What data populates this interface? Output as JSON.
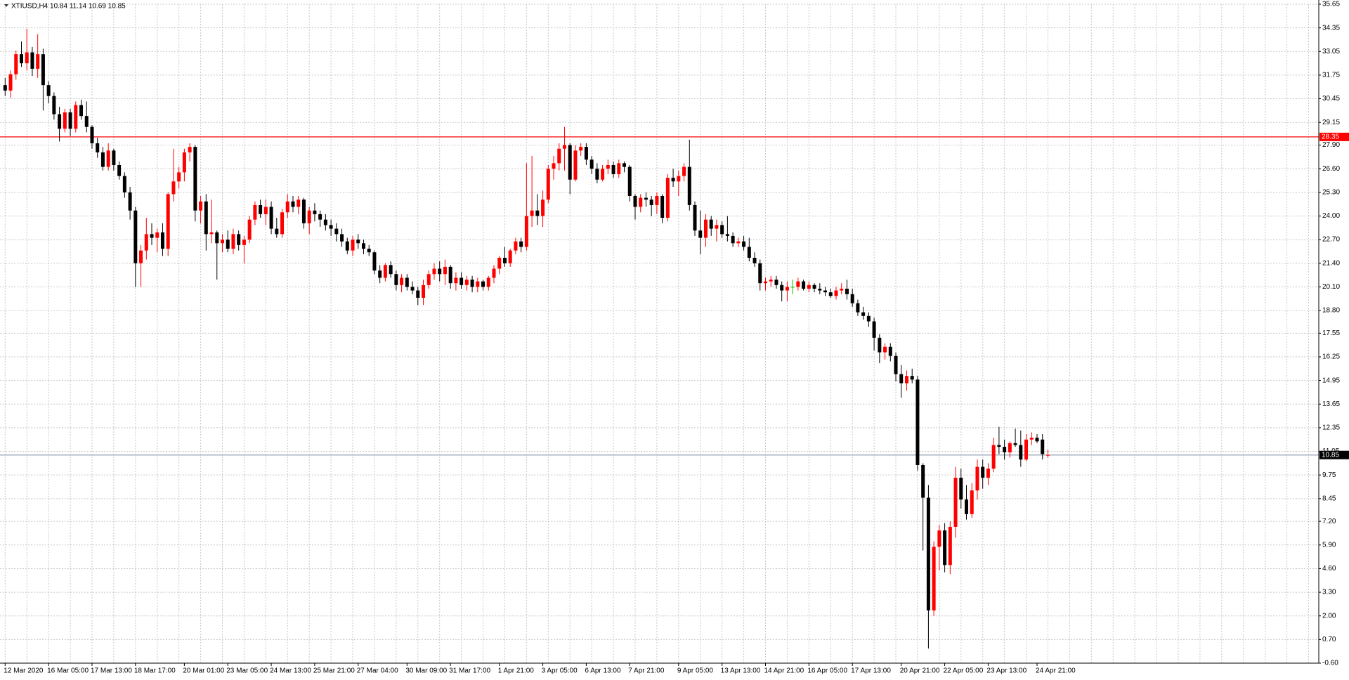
{
  "chart_data": {
    "type": "candlestick",
    "title": "XTIUSD,H4  10.84 11.14 10.69 10.85",
    "bull_color": "#ff0000",
    "bear_color": "#000000",
    "doji_color": "#00c000",
    "grid": true,
    "ylim": [
      -0.6,
      35.65
    ],
    "yticks": [
      35.65,
      34.35,
      33.05,
      31.75,
      30.45,
      29.15,
      {
        "value": 27.9,
        "label": "27.90"
      },
      {
        "value": 26.6,
        "label": "26.60"
      },
      {
        "value": 25.3,
        "label": "25.30"
      },
      {
        "value": 24,
        "label": "24.00"
      },
      {
        "value": 22.7,
        "label": "22.70"
      },
      {
        "value": 21.4,
        "label": "21.40"
      },
      {
        "value": 20.1,
        "label": "20.10"
      },
      {
        "value": 18.8,
        "label": "18.80"
      },
      17.55,
      16.25,
      14.95,
      13.65,
      12.35,
      11.05,
      9.75,
      8.45,
      {
        "value": 7.2,
        "label": "7.20"
      },
      {
        "value": 5.9,
        "label": "5.90"
      },
      {
        "value": 4.6,
        "label": "4.60"
      },
      {
        "value": 3.3,
        "label": "3.30"
      },
      {
        "value": 2,
        "label": "2.00"
      },
      {
        "value": 0.7,
        "label": "0.70"
      },
      {
        "value": -0.6,
        "label": "-0.60"
      }
    ],
    "hlines": [
      {
        "value": 28.35,
        "color": "#ff0000"
      },
      {
        "value": 10.85,
        "color": "#8c9cac"
      }
    ],
    "categories": [
      "12 Mar 2020",
      null,
      null,
      null,
      null,
      null,
      null,
      null,
      "16 Mar 05:00",
      null,
      null,
      null,
      null,
      null,
      null,
      null,
      "17 Mar 13:00",
      null,
      null,
      null,
      null,
      null,
      null,
      null,
      "18 Mar 17:00",
      null,
      null,
      null,
      null,
      null,
      null,
      null,
      null,
      "20 Mar 01:00",
      null,
      null,
      null,
      null,
      null,
      null,
      null,
      "23 Mar 05:00",
      null,
      null,
      null,
      null,
      null,
      null,
      null,
      "24 Mar 13:00",
      null,
      null,
      null,
      null,
      null,
      null,
      null,
      "25 Mar 21:00",
      null,
      null,
      null,
      null,
      null,
      null,
      null,
      "27 Mar 04:00",
      null,
      null,
      null,
      null,
      null,
      null,
      null,
      null,
      "30 Mar 09:00",
      null,
      null,
      null,
      null,
      null,
      null,
      null,
      "31 Mar 17:00",
      null,
      null,
      null,
      null,
      null,
      null,
      null,
      null,
      "1 Apr 21:00",
      null,
      null,
      null,
      null,
      null,
      null,
      null,
      "3 Apr 05:00",
      null,
      null,
      null,
      null,
      null,
      null,
      null,
      "6 Apr 13:00",
      null,
      null,
      null,
      null,
      null,
      null,
      null,
      "7 Apr 21:00",
      null,
      null,
      null,
      null,
      null,
      null,
      null,
      null,
      "9 Apr 05:00",
      null,
      null,
      null,
      null,
      null,
      null,
      null,
      "13 Apr 13:00",
      null,
      null,
      null,
      null,
      null,
      null,
      null,
      "14 Apr 21:00",
      null,
      null,
      null,
      null,
      null,
      null,
      null,
      "16 Apr 05:00",
      null,
      null,
      null,
      null,
      null,
      null,
      null,
      "17 Apr 13:00",
      null,
      null,
      null,
      null,
      null,
      null,
      null,
      null,
      "20 Apr 21:00",
      null,
      null,
      null,
      null,
      null,
      null,
      null,
      "22 Apr 05:00",
      null,
      null,
      null,
      null,
      null,
      null,
      null,
      "23 Apr 13:00",
      null,
      null,
      null,
      null,
      null,
      null,
      null,
      null,
      "24 Apr 21:00",
      null,
      null
    ],
    "ohlc": [
      [
        31.2,
        31.6,
        30.6,
        30.9
      ],
      [
        30.9,
        32.0,
        30.5,
        31.8
      ],
      [
        31.8,
        33.1,
        31.5,
        32.9
      ],
      [
        32.9,
        33.6,
        32.2,
        32.4
      ],
      [
        32.4,
        34.3,
        32.0,
        33.0
      ],
      [
        33.0,
        33.3,
        31.7,
        32.1
      ],
      [
        32.1,
        34.0,
        31.6,
        32.9
      ],
      [
        32.9,
        33.2,
        29.8,
        31.2
      ],
      [
        31.2,
        31.4,
        30.2,
        30.6
      ],
      [
        30.6,
        30.8,
        29.3,
        29.6
      ],
      [
        29.6,
        30.0,
        28.1,
        28.8
      ],
      [
        28.8,
        29.9,
        28.6,
        29.7
      ],
      [
        29.7,
        29.9,
        28.4,
        28.8
      ],
      [
        28.8,
        30.3,
        28.6,
        30.1
      ],
      [
        30.1,
        30.4,
        29.3,
        29.5
      ],
      [
        29.5,
        30.3,
        28.6,
        28.9
      ],
      [
        28.9,
        29.0,
        27.7,
        28.0
      ],
      [
        28.0,
        28.3,
        27.2,
        27.5
      ],
      [
        27.5,
        27.8,
        26.5,
        26.7
      ],
      [
        26.7,
        28.0,
        26.5,
        27.6
      ],
      [
        27.6,
        27.7,
        26.5,
        26.8
      ],
      [
        26.8,
        27.0,
        26.0,
        26.2
      ],
      [
        26.2,
        26.4,
        25.0,
        25.3
      ],
      [
        25.3,
        25.6,
        23.8,
        24.3
      ],
      [
        24.3,
        24.5,
        20.1,
        21.4
      ],
      [
        21.4,
        22.4,
        20.1,
        22.1
      ],
      [
        22.1,
        23.9,
        21.6,
        23.0
      ],
      [
        23.0,
        23.6,
        22.4,
        22.8
      ],
      [
        22.8,
        23.3,
        22.0,
        23.1
      ],
      [
        23.1,
        23.6,
        21.8,
        22.2
      ],
      [
        22.2,
        25.3,
        21.8,
        25.2
      ],
      [
        25.2,
        27.7,
        24.8,
        25.9
      ],
      [
        25.9,
        26.7,
        25.5,
        26.4
      ],
      [
        26.4,
        27.7,
        25.9,
        27.5
      ],
      [
        27.5,
        28.0,
        27.0,
        27.8
      ],
      [
        27.8,
        27.9,
        23.7,
        24.3
      ],
      [
        24.3,
        25.1,
        23.6,
        24.8
      ],
      [
        24.8,
        25.2,
        22.1,
        23.0
      ],
      [
        23.0,
        24.9,
        22.5,
        23.1
      ],
      [
        23.1,
        23.2,
        20.5,
        22.5
      ],
      [
        22.5,
        23.0,
        22.0,
        22.7
      ],
      [
        22.7,
        23.2,
        22.0,
        22.2
      ],
      [
        22.2,
        23.3,
        21.9,
        23.0
      ],
      [
        23.0,
        23.2,
        22.1,
        22.4
      ],
      [
        22.4,
        22.9,
        21.4,
        22.7
      ],
      [
        22.7,
        24.0,
        22.5,
        23.8
      ],
      [
        23.8,
        24.8,
        23.5,
        24.6
      ],
      [
        24.6,
        24.9,
        23.9,
        24.1
      ],
      [
        24.1,
        24.9,
        23.5,
        24.5
      ],
      [
        24.5,
        24.8,
        23.0,
        23.3
      ],
      [
        23.3,
        23.9,
        22.8,
        23.0
      ],
      [
        23.0,
        24.4,
        22.8,
        24.2
      ],
      [
        24.2,
        25.2,
        23.9,
        24.8
      ],
      [
        24.8,
        25.1,
        24.2,
        24.5
      ],
      [
        24.5,
        25.1,
        24.1,
        24.9
      ],
      [
        24.9,
        25.0,
        23.3,
        23.6
      ],
      [
        23.6,
        24.5,
        23.0,
        24.3
      ],
      [
        24.3,
        24.7,
        23.7,
        24.1
      ],
      [
        24.1,
        24.3,
        23.4,
        23.8
      ],
      [
        23.8,
        24.1,
        23.2,
        23.5
      ],
      [
        23.5,
        23.8,
        22.9,
        23.3
      ],
      [
        23.3,
        23.6,
        22.6,
        23.0
      ],
      [
        23.0,
        23.3,
        22.3,
        22.6
      ],
      [
        22.6,
        22.8,
        21.9,
        22.1
      ],
      [
        22.1,
        22.9,
        21.8,
        22.7
      ],
      [
        22.7,
        23.0,
        22.2,
        22.5
      ],
      [
        22.5,
        22.7,
        21.9,
        22.2
      ],
      [
        22.2,
        22.4,
        21.8,
        22.0
      ],
      [
        22.0,
        22.1,
        20.8,
        21.0
      ],
      [
        21.0,
        21.3,
        20.3,
        20.6
      ],
      [
        20.6,
        21.4,
        20.4,
        21.3
      ],
      [
        21.3,
        21.5,
        20.6,
        20.8
      ],
      [
        20.8,
        21.0,
        19.9,
        20.2
      ],
      [
        20.2,
        20.8,
        19.8,
        20.6
      ],
      [
        20.6,
        20.8,
        19.9,
        20.1
      ],
      [
        20.1,
        20.4,
        19.7,
        19.9
      ],
      [
        19.9,
        20.1,
        19.1,
        19.5
      ],
      [
        19.5,
        20.5,
        19.1,
        20.2
      ],
      [
        20.2,
        21.0,
        20.0,
        20.8
      ],
      [
        20.8,
        21.4,
        20.5,
        21.1
      ],
      [
        21.1,
        21.5,
        20.4,
        20.8
      ],
      [
        20.8,
        21.6,
        20.2,
        21.2
      ],
      [
        21.2,
        21.3,
        20.0,
        20.3
      ],
      [
        20.3,
        20.9,
        19.9,
        20.6
      ],
      [
        20.6,
        20.9,
        20.0,
        20.2
      ],
      [
        20.2,
        20.7,
        19.9,
        20.5
      ],
      [
        20.5,
        20.7,
        19.8,
        20.1
      ],
      [
        20.1,
        20.6,
        19.8,
        20.4
      ],
      [
        20.4,
        20.5,
        19.9,
        20.1
      ],
      [
        20.1,
        20.7,
        19.9,
        20.6
      ],
      [
        20.6,
        21.3,
        20.3,
        21.1
      ],
      [
        21.1,
        21.8,
        20.8,
        21.7
      ],
      [
        21.7,
        22.3,
        21.2,
        21.4
      ],
      [
        21.4,
        22.2,
        21.2,
        22.1
      ],
      [
        22.1,
        22.8,
        21.9,
        22.6
      ],
      [
        22.6,
        22.8,
        22.0,
        22.3
      ],
      [
        22.3,
        26.9,
        22.1,
        24.0
      ],
      [
        24.0,
        27.3,
        23.4,
        24.3
      ],
      [
        24.3,
        25.2,
        23.5,
        24.0
      ],
      [
        24.0,
        25.4,
        23.4,
        24.9
      ],
      [
        24.9,
        26.8,
        24.7,
        26.6
      ],
      [
        26.6,
        27.3,
        26.0,
        26.9
      ],
      [
        26.9,
        28.0,
        26.5,
        27.7
      ],
      [
        27.7,
        28.9,
        26.5,
        27.9
      ],
      [
        27.9,
        28.0,
        25.2,
        26.0
      ],
      [
        26.0,
        27.9,
        25.9,
        27.6
      ],
      [
        27.6,
        28.0,
        27.3,
        27.8
      ],
      [
        27.8,
        28.0,
        26.8,
        27.1
      ],
      [
        27.1,
        27.3,
        26.3,
        26.6
      ],
      [
        26.6,
        26.9,
        25.8,
        26.0
      ],
      [
        26.0,
        26.8,
        25.9,
        26.6
      ],
      [
        26.6,
        27.1,
        26.3,
        26.8
      ],
      [
        26.8,
        27.0,
        26.1,
        26.3
      ],
      [
        26.3,
        27.1,
        26.1,
        26.9
      ],
      [
        26.9,
        27.0,
        26.4,
        26.7
      ],
      [
        26.7,
        26.8,
        24.8,
        25.1
      ],
      [
        25.1,
        25.2,
        23.8,
        24.5
      ],
      [
        24.5,
        25.2,
        24.2,
        25.0
      ],
      [
        25.0,
        25.3,
        24.5,
        24.9
      ],
      [
        24.9,
        25.1,
        24.0,
        24.6
      ],
      [
        24.6,
        25.3,
        24.1,
        25.1
      ],
      [
        25.1,
        25.2,
        23.6,
        23.9
      ],
      [
        23.9,
        26.3,
        23.7,
        26.1
      ],
      [
        26.1,
        26.6,
        25.6,
        25.9
      ],
      [
        25.9,
        26.5,
        25.1,
        26.2
      ],
      [
        26.2,
        26.9,
        25.9,
        26.7
      ],
      [
        26.7,
        28.2,
        24.3,
        24.6
      ],
      [
        24.6,
        24.8,
        22.9,
        23.2
      ],
      [
        23.2,
        24.3,
        21.9,
        22.8
      ],
      [
        22.8,
        24.1,
        22.3,
        23.8
      ],
      [
        23.8,
        24.0,
        22.9,
        23.3
      ],
      [
        23.3,
        23.8,
        22.6,
        23.5
      ],
      [
        23.5,
        23.7,
        22.8,
        23.0
      ],
      [
        23.0,
        24.0,
        22.6,
        22.9
      ],
      [
        22.9,
        23.1,
        22.3,
        22.5
      ],
      [
        22.5,
        22.8,
        22.3,
        22.6
      ],
      [
        22.6,
        22.9,
        22.1,
        22.3
      ],
      [
        22.3,
        22.8,
        21.5,
        21.7
      ],
      [
        21.7,
        22.0,
        21.2,
        21.4
      ],
      [
        21.4,
        21.6,
        19.9,
        20.3
      ],
      [
        20.3,
        20.6,
        19.9,
        20.4
      ],
      [
        20.4,
        20.7,
        20.1,
        20.5
      ],
      [
        20.5,
        20.7,
        20.0,
        20.2
      ],
      [
        20.2,
        20.4,
        19.3,
        19.9
      ],
      [
        19.9,
        20.4,
        19.3,
        20.1
      ],
      [
        20.1,
        20.5,
        19.7,
        20.1
      ],
      [
        20.1,
        20.6,
        19.9,
        20.4
      ],
      [
        20.4,
        20.5,
        19.9,
        20.0
      ],
      [
        20.0,
        20.4,
        19.8,
        20.2
      ],
      [
        20.2,
        20.3,
        19.8,
        20.0
      ],
      [
        20.0,
        20.3,
        19.7,
        19.9
      ],
      [
        19.9,
        20.1,
        19.6,
        19.8
      ],
      [
        19.8,
        20.0,
        19.5,
        19.6
      ],
      [
        19.6,
        20.1,
        19.4,
        19.9
      ],
      [
        19.9,
        20.3,
        19.7,
        20.0
      ],
      [
        20.0,
        20.5,
        19.4,
        19.7
      ],
      [
        19.7,
        20.0,
        19.0,
        19.2
      ],
      [
        19.2,
        19.4,
        18.5,
        18.7
      ],
      [
        18.7,
        19.0,
        18.3,
        18.5
      ],
      [
        18.5,
        18.7,
        17.9,
        18.2
      ],
      [
        18.2,
        18.4,
        16.6,
        17.3
      ],
      [
        17.3,
        17.5,
        15.9,
        16.5
      ],
      [
        16.5,
        17.0,
        16.1,
        16.8
      ],
      [
        16.8,
        17.0,
        16.0,
        16.3
      ],
      [
        16.3,
        16.5,
        14.9,
        15.3
      ],
      [
        15.3,
        15.8,
        14.0,
        14.8
      ],
      [
        14.8,
        15.5,
        14.4,
        15.2
      ],
      [
        15.2,
        15.6,
        14.8,
        15.0
      ],
      [
        15.0,
        15.2,
        10.0,
        10.3
      ],
      [
        10.3,
        10.4,
        5.6,
        8.5
      ],
      [
        8.5,
        9.2,
        0.2,
        2.3
      ],
      [
        2.3,
        6.1,
        2.0,
        5.8
      ],
      [
        5.8,
        7.0,
        4.5,
        6.7
      ],
      [
        6.7,
        7.1,
        4.4,
        4.8
      ],
      [
        4.8,
        7.2,
        4.3,
        6.9
      ],
      [
        6.9,
        10.2,
        6.3,
        9.6
      ],
      [
        9.6,
        10.1,
        7.9,
        8.4
      ],
      [
        8.4,
        9.2,
        7.3,
        7.6
      ],
      [
        7.6,
        9.3,
        7.4,
        8.9
      ],
      [
        8.9,
        10.6,
        8.4,
        10.2
      ],
      [
        10.2,
        10.6,
        9.0,
        9.6
      ],
      [
        9.6,
        10.4,
        9.2,
        10.1
      ],
      [
        10.1,
        11.8,
        9.9,
        11.4
      ],
      [
        11.4,
        12.4,
        10.9,
        11.3
      ],
      [
        11.3,
        11.7,
        10.6,
        11.0
      ],
      [
        11.0,
        11.6,
        10.7,
        11.5
      ],
      [
        11.5,
        12.3,
        11.3,
        11.4
      ],
      [
        11.4,
        12.2,
        10.2,
        10.6
      ],
      [
        10.6,
        12.0,
        10.5,
        11.7
      ],
      [
        11.7,
        12.1,
        11.4,
        11.8
      ],
      [
        11.8,
        12.0,
        11.5,
        11.6
      ],
      [
        11.7,
        12.0,
        10.6,
        10.9
      ],
      [
        10.84,
        11.14,
        10.69,
        10.85
      ]
    ]
  }
}
